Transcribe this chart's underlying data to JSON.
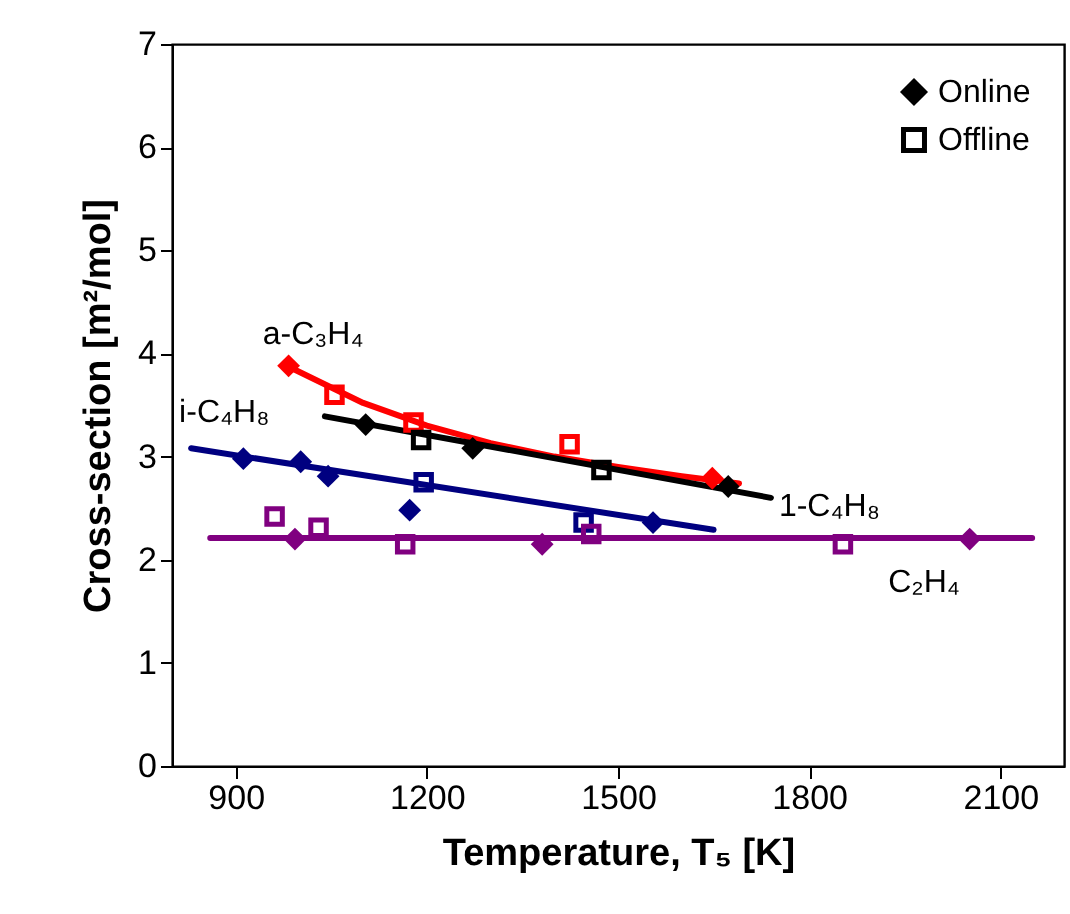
{
  "chart_data": {
    "type": "scatter",
    "xlabel": "Temperature, T₅  [K]",
    "ylabel": "Cross-section  [m²/mol]",
    "xlim": [
      800,
      2200
    ],
    "xticks": [
      900,
      1200,
      1500,
      1800,
      2100
    ],
    "ylim": [
      0,
      7
    ],
    "yticks": [
      0,
      1,
      2,
      3,
      4,
      5,
      6,
      7
    ],
    "grid": false,
    "legend": "top right",
    "series": [
      {
        "name": "a-C₃H₄",
        "type": "line",
        "color": "#ff0000",
        "marker": "none",
        "x": [
          980,
          1100,
          1200,
          1300,
          1400,
          1500,
          1600,
          1690
        ],
        "values": [
          3.88,
          3.52,
          3.3,
          3.13,
          3.0,
          2.9,
          2.81,
          2.74
        ]
      },
      {
        "name": "1-C₄H₈",
        "type": "line",
        "color": "#000000",
        "marker": "none",
        "x": [
          1040,
          1740
        ],
        "values": [
          3.39,
          2.6
        ]
      },
      {
        "name": "i-C₄H₈",
        "type": "line",
        "color": "#000080",
        "marker": "none",
        "x": [
          830,
          1650
        ],
        "values": [
          3.08,
          2.29
        ]
      },
      {
        "name": "C₂H₄",
        "type": "line",
        "color": "#800080",
        "marker": "none",
        "x": [
          860,
          2150
        ],
        "values": [
          2.21,
          2.21
        ]
      },
      {
        "color": "#ff0000",
        "marker": "diamond",
        "x": [
          983,
          1648
        ],
        "values": [
          3.88,
          2.79
        ]
      },
      {
        "color": "#ff0000",
        "marker": "square",
        "x": [
          1055,
          1179,
          1424
        ],
        "values": [
          3.6,
          3.33,
          3.12
        ]
      },
      {
        "name": "Online",
        "color": "#000000",
        "marker": "diamond",
        "x": [
          1104,
          1272,
          1673
        ],
        "values": [
          3.31,
          3.08,
          2.71
        ]
      },
      {
        "name": "Offline",
        "color": "#000000",
        "marker": "square",
        "x": [
          1191,
          1474
        ],
        "values": [
          3.16,
          2.87
        ]
      },
      {
        "color": "#000080",
        "marker": "diamond",
        "x": [
          912,
          1002,
          1045,
          1173,
          1555
        ],
        "values": [
          2.98,
          2.95,
          2.81,
          2.48,
          2.36
        ]
      },
      {
        "color": "#000080",
        "marker": "square",
        "x": [
          1195,
          1446
        ],
        "values": [
          2.75,
          2.36
        ]
      },
      {
        "color": "#800080",
        "marker": "diamond",
        "x": [
          993,
          1381,
          2052
        ],
        "values": [
          2.2,
          2.15,
          2.2
        ]
      },
      {
        "color": "#800080",
        "marker": "square",
        "x": [
          961,
          1030,
          1166,
          1458,
          1853
        ],
        "values": [
          2.42,
          2.31,
          2.15,
          2.25,
          2.15
        ]
      }
    ]
  }
}
